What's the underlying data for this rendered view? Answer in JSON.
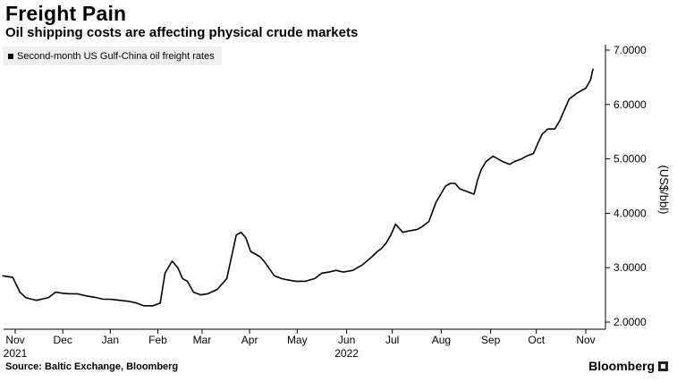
{
  "header": {
    "title": "Freight Pain",
    "subtitle": "Oil shipping costs are affecting physical crude markets"
  },
  "footer": {
    "source": "Source: Baltic Exchange, Bloomberg",
    "brand": "Bloomberg"
  },
  "chart_data": {
    "type": "line",
    "title": "Freight Pain",
    "subtitle": "Oil shipping costs are affecting physical crude markets",
    "xlabel": "",
    "ylabel": "(US$/bbl)",
    "ylim": [
      2.0,
      7.0
    ],
    "y_axis_side": "right",
    "grid": false,
    "legend_position": "top-left",
    "y_ticks": [
      {
        "value": 2.0,
        "label": "2.0000"
      },
      {
        "value": 3.0,
        "label": "3.0000"
      },
      {
        "value": 4.0,
        "label": "4.0000"
      },
      {
        "value": 5.0,
        "label": "5.0000"
      },
      {
        "value": 6.0,
        "label": "6.0000"
      },
      {
        "value": 7.0,
        "label": "7.0000"
      }
    ],
    "x_domain": [
      0,
      12.45
    ],
    "x_unit": "months since 1 Nov 2021",
    "x_ticks": [
      {
        "value": 0.0,
        "label": "Nov",
        "sublabel": "2021"
      },
      {
        "value": 1.0,
        "label": "Dec"
      },
      {
        "value": 2.0,
        "label": "Jan"
      },
      {
        "value": 3.0,
        "label": "Feb"
      },
      {
        "value": 3.93,
        "label": "Mar"
      },
      {
        "value": 4.93,
        "label": "Apr"
      },
      {
        "value": 5.93,
        "label": "May"
      },
      {
        "value": 6.97,
        "label": "Jun",
        "sublabel": "2022"
      },
      {
        "value": 7.93,
        "label": "Jul"
      },
      {
        "value": 8.96,
        "label": "Aug"
      },
      {
        "value": 10.0,
        "label": "Sep"
      },
      {
        "value": 10.96,
        "label": "Oct"
      },
      {
        "value": 12.0,
        "label": "Nov"
      }
    ],
    "series": [
      {
        "name": "Second-month US Gulf-China oil freight rates",
        "color": "#000000",
        "x": [
          -0.26,
          -0.05,
          0.1,
          0.22,
          0.35,
          0.45,
          0.55,
          0.7,
          0.85,
          1.0,
          1.15,
          1.3,
          1.5,
          1.7,
          1.85,
          2.0,
          2.2,
          2.4,
          2.55,
          2.7,
          2.9,
          3.05,
          3.15,
          3.3,
          3.42,
          3.52,
          3.62,
          3.75,
          3.9,
          4.05,
          4.25,
          4.45,
          4.55,
          4.65,
          4.75,
          4.85,
          4.95,
          5.05,
          5.15,
          5.25,
          5.45,
          5.6,
          5.7,
          5.9,
          6.1,
          6.3,
          6.45,
          6.6,
          6.75,
          6.9,
          7.1,
          7.3,
          7.5,
          7.62,
          7.7,
          7.8,
          7.9,
          8.0,
          8.15,
          8.3,
          8.45,
          8.55,
          8.7,
          8.85,
          8.95,
          9.05,
          9.15,
          9.25,
          9.35,
          9.5,
          9.65,
          9.72,
          9.8,
          9.9,
          10.05,
          10.15,
          10.25,
          10.4,
          10.5,
          10.65,
          10.75,
          10.9,
          11.0,
          11.08,
          11.2,
          11.35,
          11.45,
          11.55,
          11.65,
          11.8,
          11.9,
          12.0,
          12.1,
          12.15
        ],
        "y": [
          2.85,
          2.82,
          2.55,
          2.45,
          2.42,
          2.4,
          2.42,
          2.45,
          2.55,
          2.53,
          2.52,
          2.52,
          2.48,
          2.45,
          2.42,
          2.42,
          2.4,
          2.38,
          2.35,
          2.3,
          2.3,
          2.35,
          2.9,
          3.12,
          3.0,
          2.8,
          2.75,
          2.55,
          2.5,
          2.52,
          2.6,
          2.8,
          3.2,
          3.6,
          3.65,
          3.55,
          3.3,
          3.25,
          3.2,
          3.1,
          2.85,
          2.8,
          2.78,
          2.75,
          2.75,
          2.8,
          2.9,
          2.92,
          2.95,
          2.92,
          2.95,
          3.05,
          3.2,
          3.3,
          3.35,
          3.45,
          3.6,
          3.8,
          3.65,
          3.68,
          3.7,
          3.75,
          3.85,
          4.2,
          4.35,
          4.5,
          4.55,
          4.55,
          4.45,
          4.4,
          4.35,
          4.6,
          4.8,
          4.95,
          5.05,
          5.0,
          4.95,
          4.9,
          4.95,
          5.0,
          5.05,
          5.1,
          5.3,
          5.45,
          5.55,
          5.55,
          5.7,
          5.9,
          6.1,
          6.2,
          6.25,
          6.3,
          6.45,
          6.65
        ]
      }
    ]
  }
}
